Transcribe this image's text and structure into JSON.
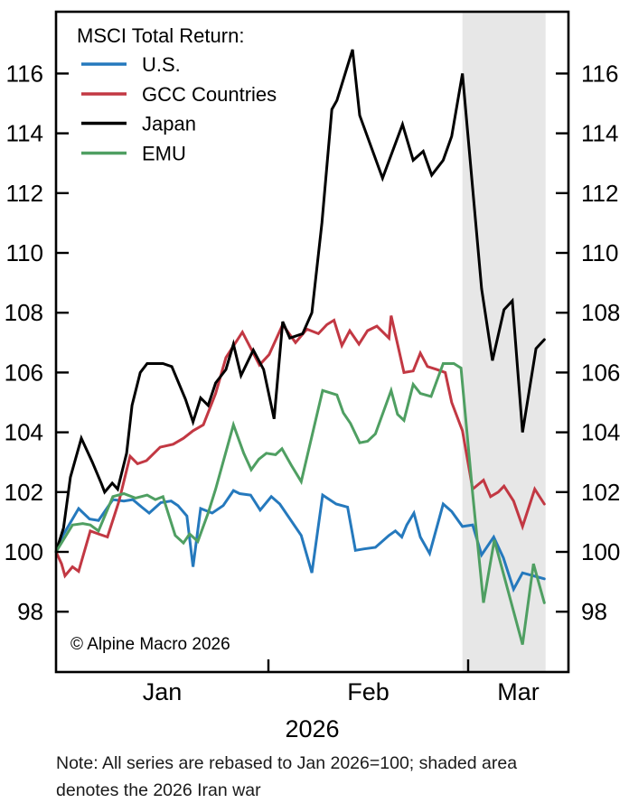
{
  "title": "MSCI Total Return:",
  "legend": [
    {
      "label": "U.S.",
      "color": "#2579bd"
    },
    {
      "label": "GCC Countries",
      "color": "#c23843"
    },
    {
      "label": "Japan",
      "color": "#000000"
    },
    {
      "label": "EMU",
      "color": "#4f9f62"
    }
  ],
  "copyright": "© Alpine Macro 2026",
  "note_line1": "Note: All series are rebased to Jan 2026=100; shaded area",
  "note_line2": "denotes the 2026 Iran war",
  "x_axis": {
    "month_labels": [
      "Jan",
      "Feb",
      "Mar"
    ],
    "year_label": "2026",
    "month_boundary_days": [
      0,
      31,
      59
    ]
  },
  "y_axis": {
    "ticks": [
      98,
      100,
      102,
      104,
      106,
      108,
      110,
      112,
      114,
      116
    ],
    "min": 96.0,
    "max": 118.1
  },
  "colors": {
    "shaded_region": "#e7e7e7",
    "axis": "#000000",
    "background": "#ffffff"
  },
  "chart_data": {
    "type": "line",
    "x_unit": "days since Jan 1, 2026",
    "ylim": [
      96.0,
      118.1
    ],
    "grid": false,
    "legend_position": "top-left-inside",
    "shaded_region": {
      "from_day": 58.2,
      "to_day": 71.1,
      "label": "2026 Iran war"
    },
    "series": [
      {
        "name": "U.S.",
        "color": "#2579bd",
        "points": [
          [
            0,
            100
          ],
          [
            1,
            100.55
          ],
          [
            3.3,
            101.45
          ],
          [
            4.9,
            101.1
          ],
          [
            6.2,
            101.05
          ],
          [
            8.3,
            101.75
          ],
          [
            9.9,
            101.7
          ],
          [
            11.2,
            101.75
          ],
          [
            12.5,
            101.5
          ],
          [
            13.6,
            101.3
          ],
          [
            15.3,
            101.65
          ],
          [
            16.8,
            101.7
          ],
          [
            17.8,
            101.55
          ],
          [
            19.1,
            101.2
          ],
          [
            20,
            99.5
          ],
          [
            21.1,
            101.45
          ],
          [
            22.8,
            101.3
          ],
          [
            24.4,
            101.55
          ],
          [
            25.9,
            102.05
          ],
          [
            26.8,
            101.95
          ],
          [
            28.4,
            101.9
          ],
          [
            29.8,
            101.4
          ],
          [
            31.4,
            101.85
          ],
          [
            32.6,
            101.6
          ],
          [
            35.6,
            100.55
          ],
          [
            37.1,
            99.3
          ],
          [
            38.6,
            101.9
          ],
          [
            40.5,
            101.6
          ],
          [
            42.1,
            101.5
          ],
          [
            43.2,
            100.05
          ],
          [
            44.4,
            100.1
          ],
          [
            46,
            100.15
          ],
          [
            47.9,
            100.55
          ],
          [
            48.8,
            100.7
          ],
          [
            49.7,
            100.5
          ],
          [
            50.4,
            100.9
          ],
          [
            51.4,
            101.3
          ],
          [
            52.3,
            100.5
          ],
          [
            53.6,
            99.95
          ],
          [
            55.5,
            101.6
          ],
          [
            56.7,
            101.35
          ],
          [
            58.2,
            100.85
          ],
          [
            59.7,
            100.9
          ],
          [
            61.1,
            99.9
          ],
          [
            63,
            100.5
          ],
          [
            64.5,
            99.8
          ],
          [
            66.1,
            98.75
          ],
          [
            67.5,
            99.3
          ],
          [
            69.2,
            99.2
          ],
          [
            70.9,
            99.1
          ]
        ]
      },
      {
        "name": "GCC Countries",
        "color": "#c23843",
        "points": [
          [
            0,
            100
          ],
          [
            0.8,
            99.6
          ],
          [
            1.3,
            99.2
          ],
          [
            2.4,
            99.5
          ],
          [
            3.3,
            99.35
          ],
          [
            5,
            100.7
          ],
          [
            6.2,
            100.6
          ],
          [
            7.5,
            100.5
          ],
          [
            9.2,
            101.7
          ],
          [
            10.8,
            103.2
          ],
          [
            11.9,
            102.95
          ],
          [
            13.2,
            103.05
          ],
          [
            15.2,
            103.5
          ],
          [
            17.1,
            103.6
          ],
          [
            18.6,
            103.8
          ],
          [
            20,
            104.05
          ],
          [
            21.5,
            104.25
          ],
          [
            23.3,
            105.3
          ],
          [
            24.8,
            106.5
          ],
          [
            27.2,
            107.35
          ],
          [
            29.7,
            106.25
          ],
          [
            31.1,
            106.6
          ],
          [
            33,
            107.6
          ],
          [
            34.8,
            107
          ],
          [
            36.4,
            107.45
          ],
          [
            38,
            107.3
          ],
          [
            39.2,
            107.6
          ],
          [
            40.2,
            107.75
          ],
          [
            41.3,
            106.9
          ],
          [
            42.4,
            107.4
          ],
          [
            43.7,
            106.95
          ],
          [
            44.9,
            107.4
          ],
          [
            46.2,
            107.55
          ],
          [
            47.9,
            107.15
          ],
          [
            48.2,
            107.9
          ],
          [
            50,
            106
          ],
          [
            51.3,
            106.05
          ],
          [
            52.3,
            106.65
          ],
          [
            53.3,
            106.2
          ],
          [
            54.6,
            106.1
          ],
          [
            55.8,
            106
          ],
          [
            56.7,
            105
          ],
          [
            58.2,
            104.05
          ],
          [
            59.7,
            102.1
          ],
          [
            61.4,
            102.4
          ],
          [
            62.5,
            101.85
          ],
          [
            63.7,
            102
          ],
          [
            64.6,
            102.2
          ],
          [
            66.1,
            101.7
          ],
          [
            67.5,
            100.85
          ],
          [
            69.4,
            102.1
          ],
          [
            70.9,
            101.6
          ]
        ]
      },
      {
        "name": "Japan",
        "color": "#000000",
        "points": [
          [
            0,
            100
          ],
          [
            1.1,
            100.8
          ],
          [
            2.1,
            102.5
          ],
          [
            3.7,
            103.8
          ],
          [
            5.3,
            103
          ],
          [
            6.6,
            102.3
          ],
          [
            7.1,
            102
          ],
          [
            8.2,
            102.3
          ],
          [
            9,
            102.1
          ],
          [
            10.3,
            103.3
          ],
          [
            11.1,
            104.9
          ],
          [
            12.3,
            106
          ],
          [
            13.3,
            106.3
          ],
          [
            15.6,
            106.3
          ],
          [
            16.9,
            106.2
          ],
          [
            18.9,
            105.1
          ],
          [
            20,
            104.35
          ],
          [
            21.1,
            105.15
          ],
          [
            22.2,
            104.9
          ],
          [
            23.3,
            105.65
          ],
          [
            24.8,
            106.1
          ],
          [
            25.9,
            106.95
          ],
          [
            27,
            105.9
          ],
          [
            28.8,
            106.75
          ],
          [
            30.3,
            106.1
          ],
          [
            31.8,
            104.45
          ],
          [
            33,
            107.7
          ],
          [
            34,
            107.15
          ],
          [
            35.8,
            107.3
          ],
          [
            37.1,
            108
          ],
          [
            38.5,
            111
          ],
          [
            39.9,
            114.8
          ],
          [
            40.6,
            115.1
          ],
          [
            42.8,
            116.8
          ],
          [
            43.8,
            114.6
          ],
          [
            47,
            112.5
          ],
          [
            49.8,
            114.3
          ],
          [
            51.3,
            113.1
          ],
          [
            52.7,
            113.4
          ],
          [
            53.9,
            112.6
          ],
          [
            55.5,
            113.1
          ],
          [
            56.7,
            113.9
          ],
          [
            58.2,
            116
          ],
          [
            61.1,
            108.8
          ],
          [
            62.8,
            106.4
          ],
          [
            64.6,
            108.1
          ],
          [
            65.9,
            108.4
          ],
          [
            67.5,
            104
          ],
          [
            69.6,
            106.8
          ],
          [
            70.9,
            107.1
          ]
        ]
      },
      {
        "name": "EMU",
        "color": "#4f9f62",
        "points": [
          [
            0,
            100
          ],
          [
            2.4,
            100.9
          ],
          [
            3.9,
            100.95
          ],
          [
            5,
            100.9
          ],
          [
            6.2,
            100.7
          ],
          [
            8.3,
            101.85
          ],
          [
            9.9,
            101.95
          ],
          [
            11.6,
            101.8
          ],
          [
            13.3,
            101.9
          ],
          [
            14.5,
            101.75
          ],
          [
            15.6,
            101.85
          ],
          [
            17.4,
            100.55
          ],
          [
            18.6,
            100.3
          ],
          [
            19.5,
            100.6
          ],
          [
            20.7,
            100.35
          ],
          [
            22.2,
            101.3
          ],
          [
            23.3,
            102.1
          ],
          [
            25.9,
            104.25
          ],
          [
            27.4,
            103.3
          ],
          [
            28.5,
            102.75
          ],
          [
            29.6,
            103.1
          ],
          [
            30.7,
            103.3
          ],
          [
            32,
            103.25
          ],
          [
            32.9,
            103.45
          ],
          [
            34.2,
            102.9
          ],
          [
            35.6,
            102.35
          ],
          [
            38.6,
            105.4
          ],
          [
            40.6,
            105.25
          ],
          [
            41.5,
            104.65
          ],
          [
            42.5,
            104.3
          ],
          [
            43.8,
            103.65
          ],
          [
            44.9,
            103.7
          ],
          [
            46,
            103.95
          ],
          [
            48.2,
            105.4
          ],
          [
            49.1,
            104.6
          ],
          [
            50,
            104.4
          ],
          [
            51.3,
            105.6
          ],
          [
            52.3,
            105.3
          ],
          [
            53.8,
            105.2
          ],
          [
            55.5,
            106.3
          ],
          [
            57,
            106.3
          ],
          [
            58,
            106.15
          ],
          [
            59.7,
            101.95
          ],
          [
            61.4,
            98.3
          ],
          [
            63.1,
            100.4
          ],
          [
            67.5,
            96.9
          ],
          [
            69.2,
            99.6
          ],
          [
            70.9,
            98.3
          ]
        ]
      }
    ]
  }
}
